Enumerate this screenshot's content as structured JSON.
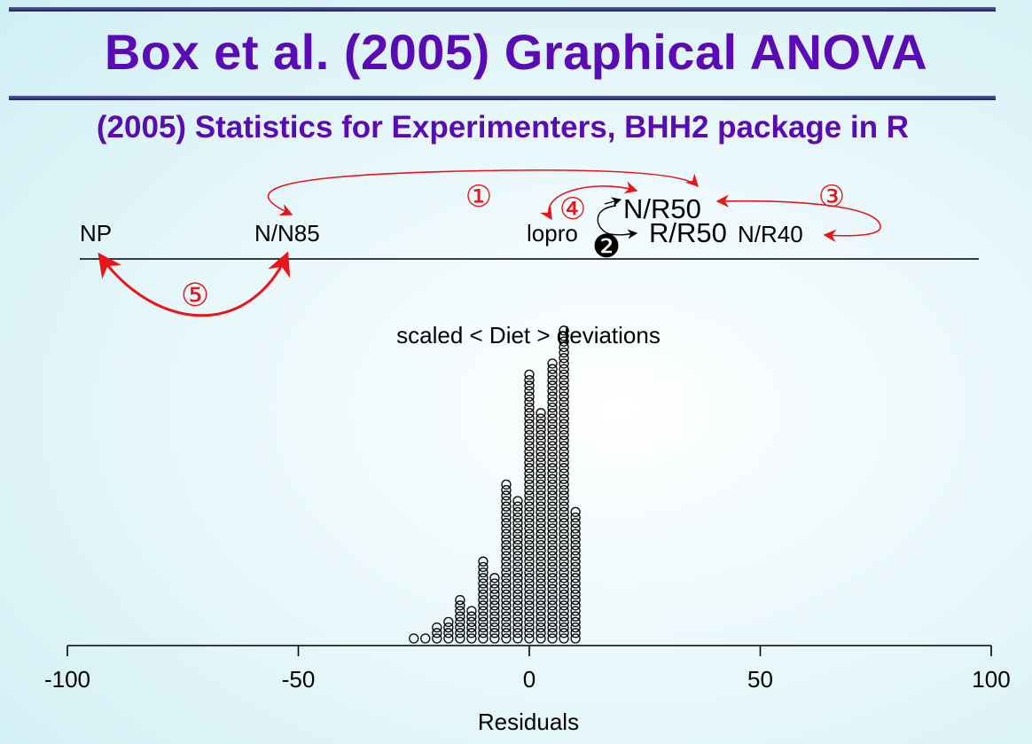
{
  "slide": {
    "title": "Box et al. (2005) Graphical ANOVA",
    "subtitle": "(2005) Statistics for Experimenters, BHH2 package in R"
  },
  "chart_data": {
    "type": "dotplot",
    "title": "scaled < Diet > deviations",
    "xlabel": "Residuals",
    "xlim": [
      -100,
      100
    ],
    "xticks": [
      "-100",
      "-50",
      "0",
      "50",
      "100"
    ],
    "diet_labels": [
      {
        "name": "NP",
        "x": -93
      },
      {
        "name": "N/N85",
        "x": -52
      },
      {
        "name": "lopro",
        "x": 6
      },
      {
        "name": "N/R50",
        "x": 29
      },
      {
        "name": "R/R50",
        "x": 35
      },
      {
        "name": "N/R40",
        "x": 53
      }
    ],
    "annotations": [
      "①",
      "❷",
      "③",
      "④",
      "⑤"
    ],
    "residual_columns": [
      {
        "x": -25,
        "count": 1
      },
      {
        "x": -22.5,
        "count": 1
      },
      {
        "x": -20,
        "count": 3
      },
      {
        "x": -17.5,
        "count": 4
      },
      {
        "x": -15,
        "count": 8
      },
      {
        "x": -12.5,
        "count": 6
      },
      {
        "x": -10,
        "count": 15
      },
      {
        "x": -7.5,
        "count": 12
      },
      {
        "x": -5,
        "count": 29
      },
      {
        "x": -2.5,
        "count": 26
      },
      {
        "x": 0,
        "count": 49
      },
      {
        "x": 2.5,
        "count": 42
      },
      {
        "x": 5,
        "count": 51
      },
      {
        "x": 7.5,
        "count": 57
      },
      {
        "x": 10,
        "count": 24
      }
    ],
    "colors": {
      "title": "#5b0bb5",
      "arrow_red": "#e8151b",
      "arrow_black": "#000000"
    }
  }
}
